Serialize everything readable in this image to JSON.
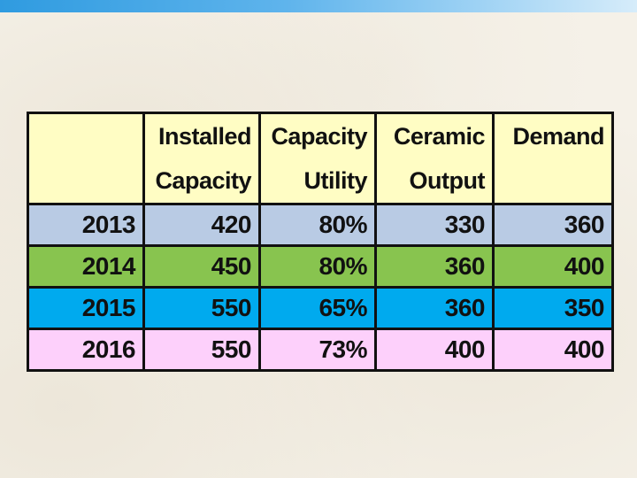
{
  "table": {
    "headers": [
      {
        "line1": "",
        "line2": ""
      },
      {
        "line1": "Installed",
        "line2": "Capacity"
      },
      {
        "line1": "Capacity",
        "line2": "Utility"
      },
      {
        "line1": "Ceramic",
        "line2": "Output"
      },
      {
        "line1": "Demand",
        "line2": ""
      }
    ],
    "rows": [
      {
        "year": "2013",
        "installed_capacity": "420",
        "capacity_utility": "80%",
        "ceramic_output": "330",
        "demand": "360"
      },
      {
        "year": "2014",
        "installed_capacity": "450",
        "capacity_utility": "80%",
        "ceramic_output": "360",
        "demand": "400"
      },
      {
        "year": "2015",
        "installed_capacity": "550",
        "capacity_utility": "65%",
        "ceramic_output": "360",
        "demand": "350"
      },
      {
        "year": "2016",
        "installed_capacity": "550",
        "capacity_utility": "73%",
        "ceramic_output": "400",
        "demand": "400"
      }
    ],
    "row_colors": {
      "2013": "#b9cbe4",
      "2014": "#88c44f",
      "2015": "#00aaee",
      "2016": "#fdd0fb"
    },
    "header_color": "#fffdc4"
  }
}
